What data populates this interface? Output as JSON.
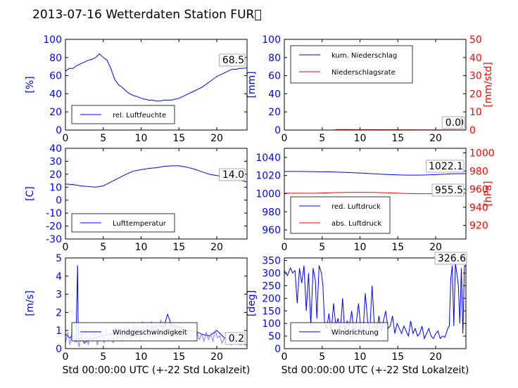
{
  "chart_data": {
    "title": "2013-07-16 Wetterdaten Station FUR\u0000",
    "xlabel": "Std 00:00:00 UTC (+-22 Std Lokalzeit)",
    "xlim": [
      0,
      24
    ],
    "xticks": [
      0,
      5,
      10,
      15,
      20
    ],
    "colors": {
      "primary": "#0000ff",
      "secondary": "#ff0000",
      "light": "#7f7fff"
    },
    "panels": [
      {
        "id": "humidity",
        "type": "line",
        "ylabel": "[%]",
        "ylim": [
          0,
          100
        ],
        "yticks": [
          0,
          20,
          40,
          60,
          80,
          100
        ],
        "legend": [
          "rel. Luftfeuchte"
        ],
        "legend_position": "lower-left",
        "annotations": [
          "68.5"
        ],
        "series": [
          {
            "name": "rel. Luftfeuchte",
            "color": "#0000ff",
            "x": [
              0,
              0.5,
              1,
              1.5,
              2,
              2.5,
              3,
              3.5,
              4,
              4.5,
              5,
              5.5,
              6,
              6.5,
              7,
              7.5,
              8,
              8.5,
              9,
              9.5,
              10,
              10.5,
              11,
              11.5,
              12,
              12.5,
              13,
              13.5,
              14,
              15,
              16,
              17,
              18,
              19,
              20,
              21,
              22,
              22.5,
              23,
              23.5,
              24
            ],
            "y": [
              65,
              68,
              68,
              71,
              73,
              75,
              77,
              78,
              80,
              84,
              80,
              77,
              68,
              56,
              50,
              47,
              43,
              40,
              38,
              37,
              35,
              34,
              33,
              33,
              32,
              32,
              33,
              33,
              33,
              35,
              39,
              43,
              47,
              53,
              59,
              63,
              67,
              67,
              68,
              68,
              68.5
            ]
          }
        ]
      },
      {
        "id": "precip",
        "type": "line",
        "ylabel": "[mm]",
        "ylim": [
          0,
          100
        ],
        "yticks": [
          0,
          20,
          40,
          60,
          80,
          100
        ],
        "y2label": "[mm/std]",
        "y2lim": [
          0,
          50
        ],
        "y2ticks": [
          0,
          10,
          20,
          30,
          40,
          50
        ],
        "legend": [
          "kum. Niederschlag",
          "Niederschlagsrate"
        ],
        "legend_position": "upper-left",
        "annotations": [
          "0.0",
          "0.0"
        ],
        "series": [
          {
            "name": "kum. Niederschlag",
            "color": "#0000ff",
            "x": [
              0,
              24
            ],
            "y": [
              0,
              0
            ]
          },
          {
            "name": "Niederschlagsrate",
            "color": "#ff0000",
            "axis": "right",
            "x": [
              0,
              6.5,
              7,
              24
            ],
            "y": [
              0,
              0,
              0.3,
              0
            ]
          }
        ]
      },
      {
        "id": "temperature",
        "type": "line",
        "ylabel": "[C]",
        "ylim": [
          -30,
          40
        ],
        "yticks": [
          -30,
          -20,
          -10,
          0,
          10,
          20,
          30,
          40
        ],
        "legend": [
          "Lufttemperatur"
        ],
        "legend_position": "lower-left",
        "annotations": [
          "14.0"
        ],
        "series": [
          {
            "name": "Lufttemperatur",
            "color": "#0000ff",
            "x": [
              0,
              1,
              2,
              3,
              4,
              5,
              6,
              7,
              8,
              9,
              10,
              11,
              12,
              13,
              14,
              15,
              16,
              17,
              18,
              19,
              20,
              21,
              22,
              23,
              24
            ],
            "y": [
              12.5,
              12,
              11,
              10.5,
              10,
              11,
              14,
              17,
              20,
              22.5,
              23.5,
              24.5,
              25,
              26,
              26.5,
              26.5,
              25.5,
              24,
              22,
              20,
              19,
              18,
              17,
              15.5,
              14
            ]
          }
        ]
      },
      {
        "id": "pressure",
        "type": "line",
        "ylabel": "",
        "ylim": [
          950,
          1050
        ],
        "yticks": [
          960,
          980,
          1000,
          1020,
          1040
        ],
        "y2label": "[hPa]",
        "y2lim": [
          905,
          1005
        ],
        "y2ticks": [
          920,
          940,
          960,
          980,
          1000
        ],
        "legend": [
          "red. Luftdruck",
          "abs. Luftdruck"
        ],
        "legend_position": "lower-left",
        "annotations": [
          "1022.1",
          "955.5"
        ],
        "series": [
          {
            "name": "red. Luftdruck",
            "color": "#0000ff",
            "x": [
              0,
              2,
              4,
              6,
              8,
              10,
              12,
              14,
              16,
              18,
              20,
              22,
              24
            ],
            "y": [
              1024.5,
              1024.5,
              1024.3,
              1024,
              1023.5,
              1022.8,
              1021.8,
              1021,
              1020.5,
              1020.5,
              1021,
              1021.8,
              1022.1
            ]
          },
          {
            "name": "abs. Luftdruck",
            "color": "#ff0000",
            "axis": "right",
            "x": [
              0,
              2,
              4,
              6,
              8,
              10,
              12,
              14,
              16,
              18,
              20,
              22,
              24
            ],
            "y": [
              955.5,
              955.5,
              955.4,
              956,
              956.3,
              956.5,
              956.3,
              955.8,
              955.2,
              954.9,
              955,
              955.3,
              955.5
            ]
          }
        ]
      },
      {
        "id": "wind",
        "type": "line",
        "ylabel": "[m/s]",
        "ylim": [
          0,
          5
        ],
        "yticks": [
          0,
          1,
          2,
          3,
          4,
          5
        ],
        "legend": [
          "Windgeschwindigkeit"
        ],
        "legend_position": "lower-left",
        "annotations": [
          "0.2"
        ],
        "series": [
          {
            "name": "Windgeschwindigkeit",
            "color": "#0000ff",
            "x": [
              0,
              0.5,
              1,
              1.4,
              1.6,
              1.7,
              1.8,
              2,
              2.5,
              3,
              4,
              5,
              6,
              7,
              8,
              9,
              10,
              11,
              12,
              13,
              13.5,
              14,
              15,
              16,
              17,
              18,
              19,
              20,
              21,
              22,
              23,
              24
            ],
            "y": [
              0.8,
              0.6,
              0.7,
              0.4,
              4.6,
              0.5,
              0.5,
              0.6,
              0.3,
              0.5,
              0.6,
              0.7,
              0.8,
              0.9,
              1.0,
              1.0,
              1.1,
              1.0,
              1.3,
              1.2,
              1.9,
              1.3,
              1.2,
              1.0,
              1.0,
              0.8,
              0.7,
              1.0,
              0.6,
              0.5,
              0.3,
              0.2
            ]
          },
          {
            "name": "",
            "color": "#7f7fff",
            "x": [
              0,
              0.3,
              0.6,
              0.9,
              1.2,
              1.5,
              1.8,
              2.1,
              2.4,
              2.7,
              3,
              3.3,
              3.6,
              3.9,
              4.2,
              4.5,
              4.8,
              5.1,
              5.4,
              5.7,
              6,
              6.3,
              6.6,
              6.9,
              7.2,
              7.5,
              7.8,
              8.1,
              8.4,
              8.7,
              9,
              9.3,
              9.6,
              9.9,
              10.2,
              10.5,
              10.8,
              11.1,
              11.4,
              11.7,
              12,
              12.3,
              12.6,
              12.9,
              13.2,
              13.5,
              13.8,
              14.1,
              14.4,
              14.7,
              15,
              15.3,
              15.6,
              15.9,
              16.2,
              16.5,
              16.8,
              17.1,
              17.4,
              17.7,
              18,
              18.3,
              18.6,
              18.9,
              19.2,
              19.5,
              19.8,
              20.1,
              20.4,
              20.7,
              21,
              21.3,
              21.6,
              21.9,
              22.2,
              22.5,
              22.8,
              23.1,
              23.4,
              23.7,
              24
            ],
            "y": [
              0.3,
              0.9,
              0.2,
              1.1,
              0.4,
              0.7,
              0.1,
              0.9,
              0.3,
              1.0,
              0.2,
              0.8,
              0.4,
              1.0,
              0.2,
              0.6,
              0.9,
              0.3,
              1.1,
              0.4,
              0.9,
              0.3,
              1.2,
              0.5,
              1.0,
              0.4,
              1.3,
              0.6,
              1.1,
              0.5,
              1.4,
              0.6,
              1.2,
              0.5,
              1.5,
              0.7,
              1.3,
              0.6,
              1.5,
              0.8,
              1.3,
              0.6,
              1.6,
              0.7,
              1.4,
              0.8,
              1.5,
              0.7,
              1.3,
              0.6,
              1.2,
              0.6,
              1.1,
              0.5,
              1.0,
              0.6,
              1.0,
              0.4,
              0.9,
              0.5,
              0.8,
              0.4,
              0.9,
              0.5,
              0.8,
              0.4,
              1.0,
              0.6,
              0.7,
              0.3,
              0.6,
              0.4,
              0.5,
              0.2,
              0.4,
              0.3,
              0.4,
              0.2,
              0.3,
              0.2,
              0.2
            ]
          }
        ]
      },
      {
        "id": "winddir",
        "type": "line",
        "ylabel": "[deg]",
        "ylim": [
          0,
          360
        ],
        "yticks": [
          0,
          50,
          100,
          150,
          200,
          250,
          300,
          350
        ],
        "legend": [
          "Windrichtung"
        ],
        "legend_position": "lower-left",
        "annotations": [
          "326.6"
        ],
        "series": [
          {
            "name": "Windrichtung",
            "color": "#0000ff",
            "x": [
              0,
              0.4,
              0.8,
              1.1,
              1.4,
              1.7,
              2,
              2.3,
              2.6,
              2.9,
              3.2,
              3.5,
              3.8,
              4.1,
              4.3,
              4.6,
              4.9,
              5.1,
              5.3,
              5.6,
              5.9,
              6.2,
              6.5,
              6.8,
              7.1,
              7.4,
              7.7,
              8,
              8.3,
              8.6,
              8.9,
              9.2,
              9.5,
              9.8,
              10.1,
              10.4,
              10.7,
              11,
              11.3,
              11.6,
              11.9,
              12.2,
              12.5,
              12.8,
              13.1,
              13.4,
              13.7,
              14,
              14.3,
              14.6,
              14.9,
              15.2,
              15.5,
              15.8,
              16.1,
              16.4,
              16.7,
              17,
              17.3,
              17.6,
              17.9,
              18.2,
              18.5,
              18.8,
              19.1,
              19.4,
              19.7,
              20,
              20.3,
              20.6,
              20.9,
              21.2,
              21.4,
              21.6,
              21.8,
              22,
              22.2,
              22.4,
              22.6,
              22.8,
              23,
              23.2,
              23.4,
              23.6,
              23.8,
              24
            ],
            "y": [
              310,
              290,
              320,
              300,
              310,
              180,
              320,
              260,
              330,
              150,
              300,
              90,
              320,
              270,
              120,
              330,
              300,
              250,
              110,
              80,
              140,
              60,
              180,
              90,
              120,
              70,
              200,
              60,
              110,
              90,
              150,
              60,
              100,
              180,
              80,
              60,
              220,
              110,
              70,
              250,
              90,
              60,
              130,
              70,
              110,
              150,
              80,
              90,
              130,
              60,
              100,
              80,
              60,
              90,
              70,
              50,
              110,
              60,
              80,
              50,
              60,
              90,
              40,
              60,
              80,
              50,
              40,
              60,
              70,
              40,
              50,
              45,
              60,
              80,
              90,
              280,
              330,
              90,
              340,
              300,
              250,
              100,
              320,
              60,
              330,
              326.6
            ]
          }
        ]
      }
    ]
  }
}
